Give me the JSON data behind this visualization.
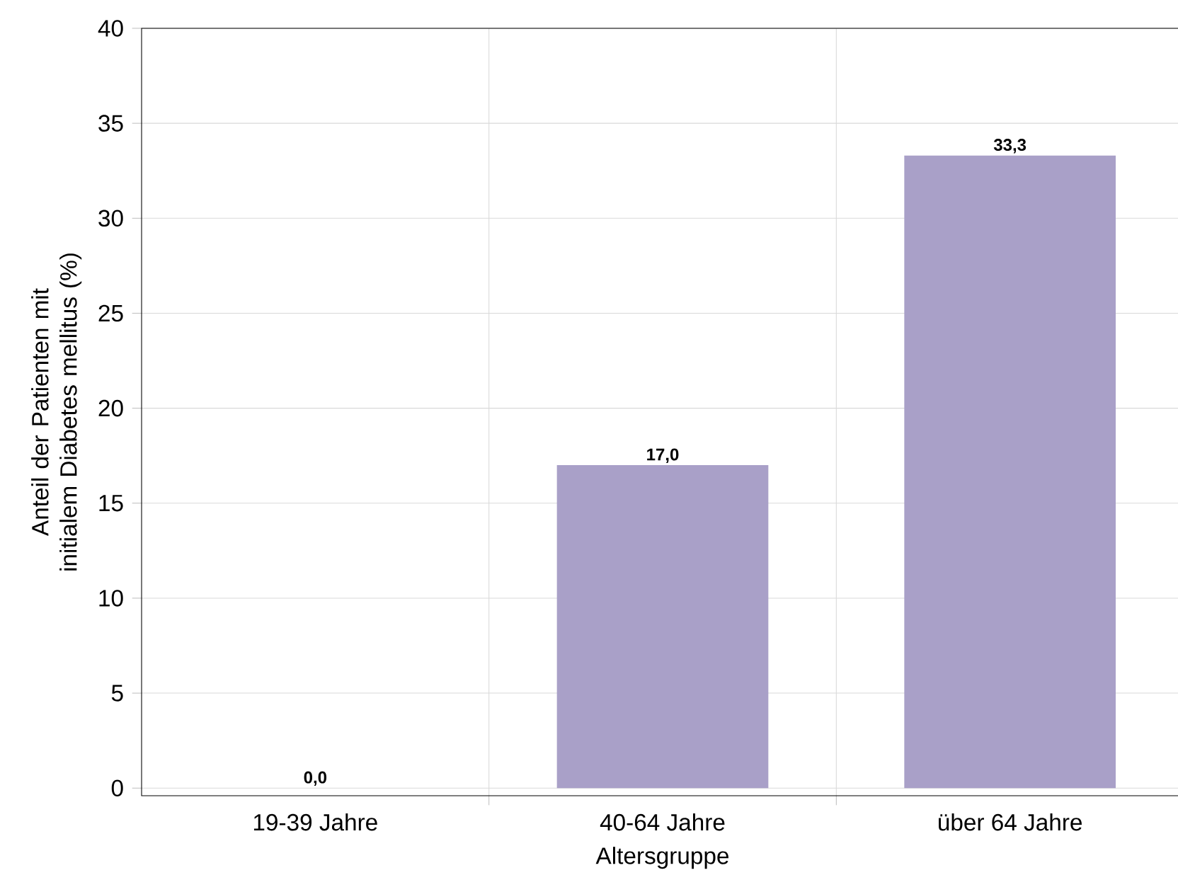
{
  "chart_data": {
    "type": "bar",
    "xlabel": "Altersgruppe",
    "ylabel": "Anteil der Patienten mit initialem Diabetes mellitus (%)",
    "categories": [
      "19-39 Jahre",
      "40-64 Jahre",
      "über 64 Jahre"
    ],
    "values": [
      0.0,
      17.0,
      33.3
    ],
    "value_labels": [
      "0,0",
      "17,0",
      "33,3"
    ],
    "color": "#a9a0c8",
    "ylim": [
      -0.4,
      40
    ],
    "yticks": [
      0,
      5,
      10,
      15,
      20,
      25,
      30,
      35,
      40
    ],
    "grid": true
  }
}
